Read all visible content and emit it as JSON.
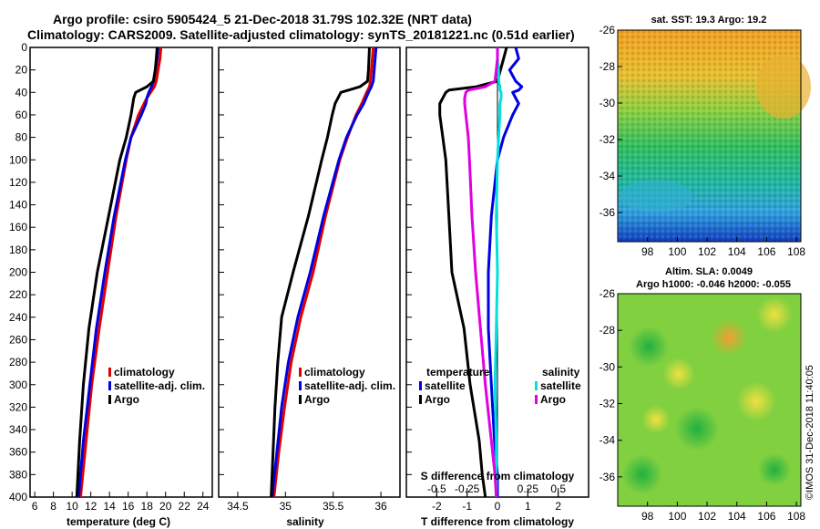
{
  "header": {
    "line1": "Argo profile: csiro 5905424_5 21-Dec-2018 31.79S 102.32E (NRT data)",
    "line2": "Climatology: CARS2009. Satellite-adjusted climatology: synTS_20181221.nc (0.51d earlier)"
  },
  "credit": "©IMOS 31-Dec-2018 11:40:05",
  "colors": {
    "climatology": "#e00000",
    "satellite": "#0000e0",
    "argo": "#000000",
    "sal_satellite": "#00e0e0",
    "sal_argo": "#e000e0"
  },
  "chart_data": [
    {
      "type": "line",
      "name": "temperature-profile",
      "xlabel": "temperature (deg C)",
      "ylabel": "",
      "xlim": [
        5.5,
        25
      ],
      "ylim": [
        400,
        0
      ],
      "xticks": [
        6,
        8,
        10,
        12,
        14,
        16,
        18,
        20,
        22,
        24
      ],
      "yticks": [
        0,
        20,
        40,
        60,
        80,
        100,
        120,
        140,
        160,
        180,
        200,
        220,
        240,
        260,
        280,
        300,
        320,
        340,
        360,
        380,
        400
      ],
      "depth": [
        0,
        10,
        20,
        30,
        35,
        40,
        45,
        50,
        60,
        80,
        100,
        150,
        200,
        250,
        300,
        350,
        400
      ],
      "legend": [
        "climatology",
        "satellite-adj. clim.",
        "Argo"
      ],
      "series": [
        {
          "name": "climatology",
          "values": [
            19.5,
            19.4,
            19.2,
            19.0,
            18.8,
            18.4,
            18.0,
            17.7,
            17.1,
            16.3,
            15.8,
            14.7,
            13.8,
            12.9,
            12.1,
            11.5,
            10.9
          ]
        },
        {
          "name": "satellite-adj. clim.",
          "values": [
            19.2,
            19.1,
            18.9,
            18.7,
            18.5,
            18.2,
            18.0,
            17.9,
            17.4,
            16.3,
            15.7,
            14.5,
            13.5,
            12.6,
            11.9,
            11.2,
            10.7
          ]
        },
        {
          "name": "Argo",
          "values": [
            19.1,
            19.0,
            18.9,
            18.7,
            18.0,
            16.8,
            16.6,
            16.5,
            16.3,
            15.8,
            15.1,
            13.9,
            12.7,
            11.8,
            11.2,
            10.8,
            10.5
          ]
        }
      ]
    },
    {
      "type": "line",
      "name": "salinity-profile",
      "xlabel": "salinity",
      "ylabel": "",
      "xlim": [
        34.3,
        36.2
      ],
      "ylim": [
        400,
        0
      ],
      "xticks": [
        34.5,
        35,
        35.5,
        36
      ],
      "depth": [
        0,
        20,
        30,
        35,
        40,
        50,
        60,
        80,
        100,
        150,
        200,
        240,
        280,
        320,
        360,
        400
      ],
      "legend": [
        "climatology",
        "satellite-adj. clim.",
        "Argo"
      ],
      "series": [
        {
          "name": "climatology",
          "values": [
            35.92,
            35.9,
            35.89,
            35.88,
            35.85,
            35.8,
            35.74,
            35.65,
            35.57,
            35.42,
            35.29,
            35.16,
            35.06,
            34.99,
            34.93,
            34.88
          ]
        },
        {
          "name": "satellite-adj. clim.",
          "values": [
            35.95,
            35.93,
            35.92,
            35.9,
            35.87,
            35.82,
            35.75,
            35.64,
            35.56,
            35.4,
            35.26,
            35.13,
            35.03,
            34.96,
            34.91,
            34.86
          ]
        },
        {
          "name": "Argo",
          "values": [
            35.88,
            35.87,
            35.86,
            35.78,
            35.58,
            35.52,
            35.49,
            35.44,
            35.38,
            35.24,
            35.08,
            34.96,
            34.92,
            34.89,
            34.87,
            34.85
          ]
        }
      ]
    },
    {
      "type": "line",
      "name": "difference-profile",
      "xlabel": "T difference from climatology",
      "x2label": "S difference from climatology",
      "xlim": [
        -3,
        3
      ],
      "ylim": [
        400,
        0
      ],
      "xticks": [
        -2,
        -1,
        0,
        1,
        2
      ],
      "x2ticks": [
        -0.5,
        -0.25,
        0.25,
        0.5
      ],
      "x2scale": 4,
      "depth": [
        0,
        10,
        20,
        30,
        35,
        38,
        40,
        45,
        50,
        60,
        80,
        100,
        150,
        200,
        250,
        300,
        350,
        380,
        400
      ],
      "legend_temperature": {
        "title": "temperature",
        "items": [
          "satellite",
          "Argo"
        ]
      },
      "legend_salinity": {
        "title": "salinity",
        "items": [
          "satellite",
          "Argo"
        ]
      },
      "series": [
        {
          "name": "T satellite",
          "values": [
            0.6,
            0.7,
            0.4,
            0.6,
            0.8,
            0.7,
            0.5,
            0.6,
            0.7,
            0.5,
            0.2,
            0.0,
            -0.2,
            -0.3,
            -0.3,
            -0.2,
            -0.1,
            0.0,
            0.0
          ]
        },
        {
          "name": "T Argo",
          "values": [
            0.3,
            0.2,
            0.1,
            0.0,
            -0.7,
            -1.6,
            -1.7,
            -1.8,
            -1.9,
            -1.9,
            -1.8,
            -1.7,
            -1.6,
            -1.5,
            -1.1,
            -0.9,
            -0.6,
            -0.5,
            -0.4
          ]
        },
        {
          "name": "S satellite",
          "values": [
            0.0,
            0.0,
            0.01,
            0.01,
            0.02,
            0.02,
            0.03,
            0.03,
            0.02,
            0.02,
            0.01,
            0.0,
            -0.01,
            0.0,
            -0.01,
            -0.02,
            -0.01,
            -0.01,
            -0.01
          ]
        },
        {
          "name": "S Argo",
          "values": [
            0.0,
            0.0,
            -0.01,
            -0.02,
            -0.1,
            -0.24,
            -0.26,
            -0.27,
            -0.27,
            -0.26,
            -0.24,
            -0.23,
            -0.21,
            -0.18,
            -0.14,
            -0.1,
            -0.05,
            -0.02,
            -0.01
          ]
        }
      ]
    },
    {
      "type": "heatmap",
      "name": "sst-map",
      "title": "sat. SST: 19.3 Argo: 19.2",
      "xlim": [
        96,
        108.3
      ],
      "ylim": [
        -37.6,
        -26
      ],
      "xticks": [
        98,
        100,
        102,
        104,
        106,
        108
      ],
      "yticks": [
        -26,
        -28,
        -30,
        -32,
        -34,
        -36
      ]
    },
    {
      "type": "heatmap",
      "name": "sla-map",
      "title": "Altim. SLA: 0.0049",
      "subtitle": "Argo h1000: -0.046 h2000: -0.055",
      "xlim": [
        96,
        108.3
      ],
      "ylim": [
        -37.6,
        -26
      ],
      "xticks": [
        98,
        100,
        102,
        104,
        106,
        108
      ],
      "yticks": [
        -26,
        -28,
        -30,
        -32,
        -34,
        -36
      ]
    }
  ]
}
